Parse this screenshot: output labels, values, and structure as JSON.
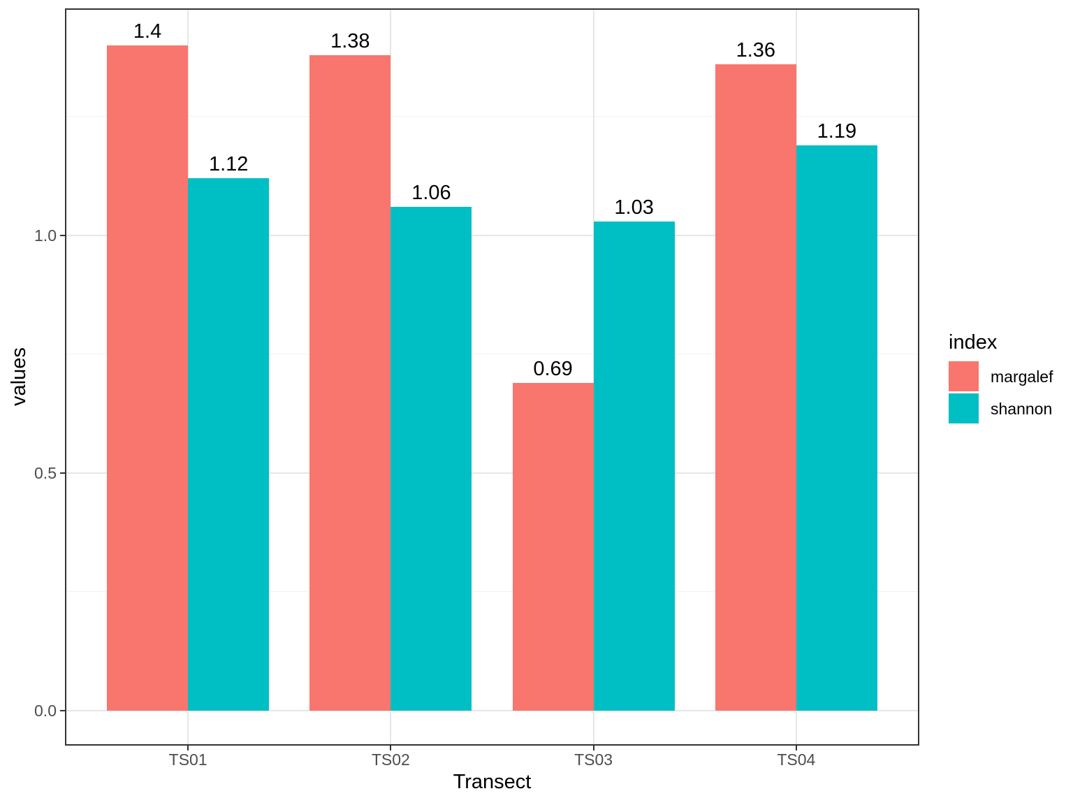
{
  "chart_data": {
    "type": "bar",
    "title": "",
    "xlabel": "Transect",
    "ylabel": "values",
    "categories": [
      "TS01",
      "TS02",
      "TS03",
      "TS04"
    ],
    "series": [
      {
        "name": "margalef",
        "color": "#F8766D",
        "values": [
          1.4,
          1.38,
          0.69,
          1.36
        ],
        "value_labels": [
          "1.4",
          "1.38",
          "0.69",
          "1.36"
        ]
      },
      {
        "name": "shannon",
        "color": "#00BFC4",
        "values": [
          1.12,
          1.06,
          1.03,
          1.19
        ],
        "value_labels": [
          "1.12",
          "1.06",
          "1.03",
          "1.19"
        ]
      }
    ],
    "y_axis": {
      "ticks": [
        0,
        0.5,
        1
      ],
      "tick_labels": [
        "0.0",
        "0.5",
        "1.0"
      ],
      "minor_ticks": [
        0.25,
        0.75,
        1.25
      ],
      "range": [
        -0.071,
        1.475
      ]
    },
    "x_axis": {
      "tick_labels": [
        "TS01",
        "TS02",
        "TS03",
        "TS04"
      ]
    },
    "grid": {
      "show": true,
      "major_color": "#E6E6E6",
      "minor_color": "#F1F1F1"
    },
    "legend": {
      "title": "index",
      "position": "right",
      "entries": [
        "margalef",
        "shannon"
      ]
    },
    "layout_hints": {
      "group_gap_ratio": 0.2,
      "bar_width_ratio": 0.4,
      "bar_labels_shown": true
    }
  },
  "theme": {
    "panel_border_color": "#333333",
    "tick_color": "#333333",
    "tick_label_color": "#4D4D4D",
    "axis_title_color": "#000000",
    "bar_label_color": "#000000",
    "background": "#FFFFFF"
  }
}
